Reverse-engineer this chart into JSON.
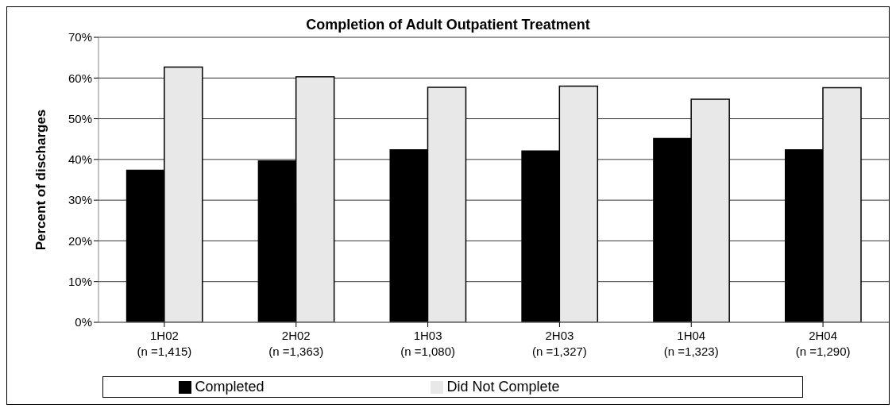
{
  "chart_data": {
    "type": "bar",
    "title": "Completion of Adult Outpatient Treatment",
    "ylabel": "Percent of discharges",
    "categories": [
      "1H02\n(n =1,415)",
      "2H02\n(n =1,363)",
      "1H03\n(n =1,080)",
      "2H03\n(n =1,327)",
      "1H04\n(n =1,323)",
      "2H04\n(n =1,290)"
    ],
    "series": [
      {
        "name": "Completed",
        "color": "#000000",
        "values": [
          37.5,
          39.8,
          42.5,
          42.2,
          45.3,
          42.5
        ]
      },
      {
        "name": "Did Not Complete",
        "color": "#e8e8e8",
        "values": [
          62.7,
          60.3,
          57.7,
          58.0,
          54.8,
          57.6
        ]
      }
    ],
    "ylim": [
      0,
      70
    ],
    "yticks": [
      {
        "value": 0,
        "label": "0%"
      },
      {
        "value": 10,
        "label": "10%"
      },
      {
        "value": 20,
        "label": "20%"
      },
      {
        "value": 30,
        "label": "30%"
      },
      {
        "value": 40,
        "label": "40%"
      },
      {
        "value": 50,
        "label": "50%"
      },
      {
        "value": 60,
        "label": "60%"
      },
      {
        "value": 70,
        "label": "70%"
      }
    ],
    "grid": "y",
    "legend": "bottom"
  }
}
